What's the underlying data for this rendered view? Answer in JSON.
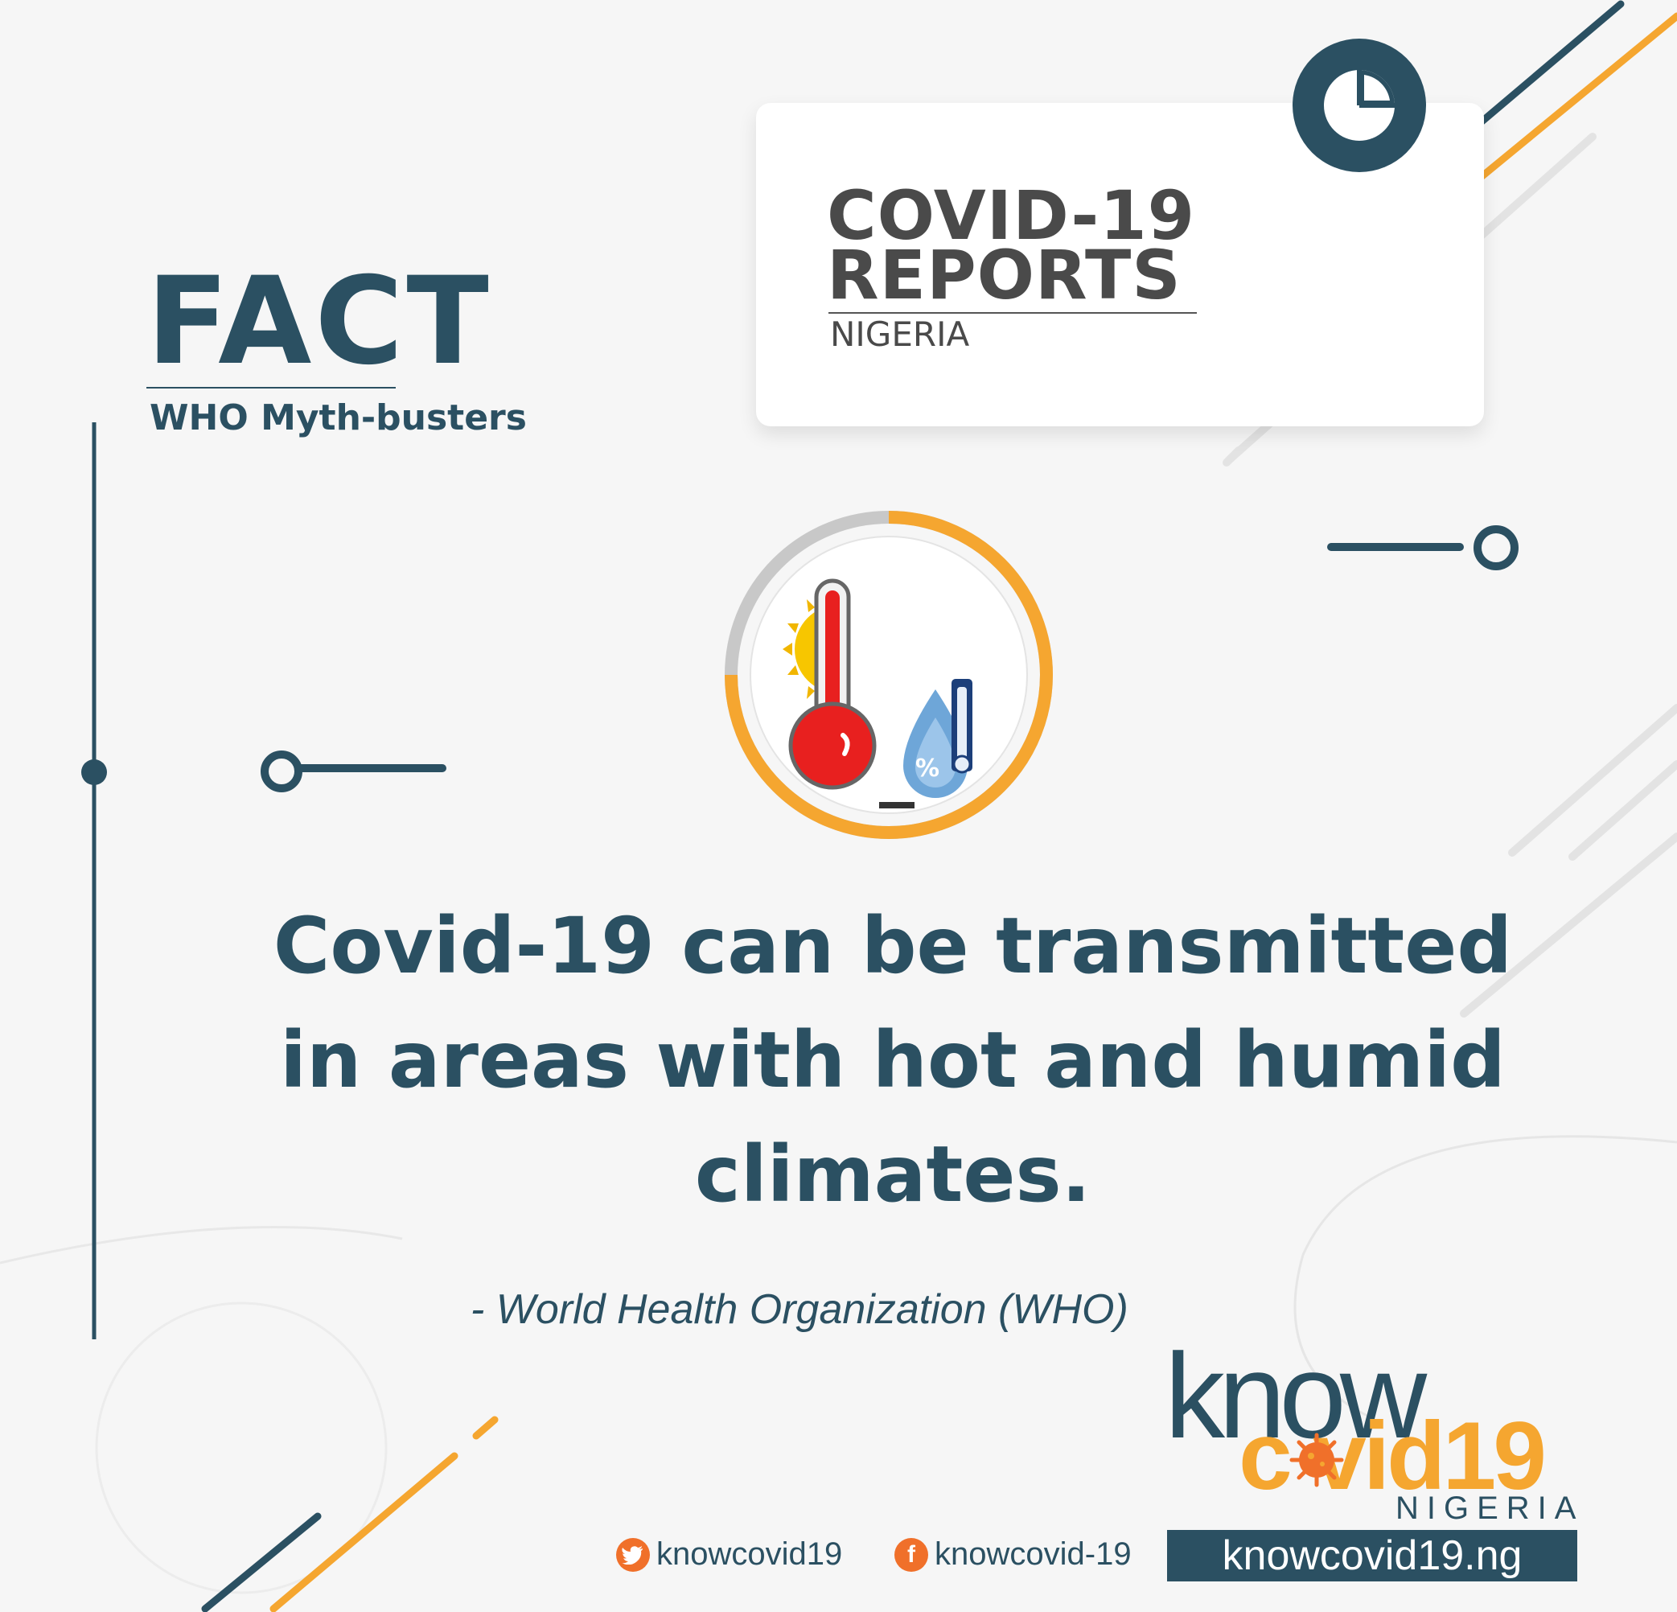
{
  "fact": {
    "title": "FACT",
    "subtitle": "WHO Myth-busters"
  },
  "report_card": {
    "title_line1": "COVID-19",
    "title_line2": "REPORTS",
    "subtitle": "NIGERIA",
    "badge_icon": "pie-chart-icon"
  },
  "illustration": {
    "icon": "hot-humid-climate-icon",
    "ring_progress_percent": 75
  },
  "statement": {
    "line1": "Covid-19 can be transmitted",
    "line2": "in areas with hot and humid",
    "line3": "climates."
  },
  "source": "- World Health Organization (WHO)",
  "brand": {
    "know": "know",
    "covid": "c vid19",
    "nigeria": "NIGERIA"
  },
  "social": {
    "twitter": "knowcovid19",
    "facebook": "knowcovid-19",
    "website": "knowcovid19.ng"
  },
  "colors": {
    "navy": "#2b5062",
    "orange": "#f5a630",
    "background": "#f6f6f6",
    "gray": "#c8c8c8"
  }
}
